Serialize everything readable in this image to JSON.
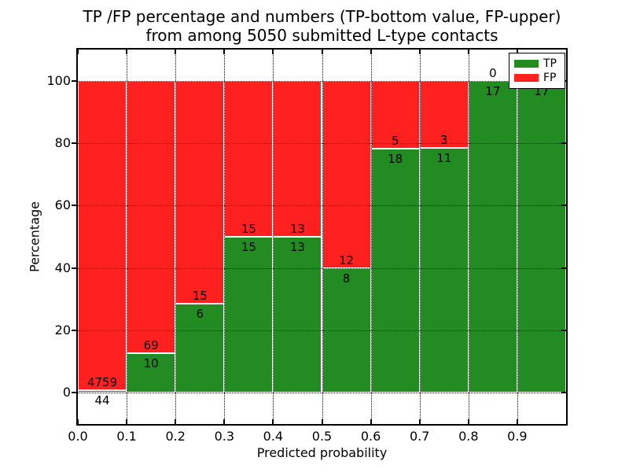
{
  "chart_data": {
    "type": "bar",
    "subtype": "stacked-100-percent",
    "title_lines": [
      "TP /FP percentage and numbers (TP-bottom value, FP-upper)",
      "from among 5050 submitted L-type contacts"
    ],
    "xlabel": "Predicted probability",
    "ylabel": "Percentage",
    "xlim": [
      0.0,
      1.0
    ],
    "ylim": [
      -10,
      110
    ],
    "x_tick_labels": [
      "0.0",
      "0.1",
      "0.2",
      "0.3",
      "0.4",
      "0.5",
      "0.6",
      "0.7",
      "0.8",
      "0.9"
    ],
    "y_tick_values": [
      0,
      20,
      40,
      60,
      80,
      100
    ],
    "grid_style": "dotted",
    "legend_position": "upper-right",
    "total_submitted_contacts": 5050,
    "colors": {
      "tp": "#228b22",
      "fp": "#ff2020"
    },
    "legend": [
      {
        "label": "TP",
        "color": "#228b22"
      },
      {
        "label": "FP",
        "color": "#ff2020"
      }
    ],
    "bins": [
      {
        "x_start": 0.0,
        "x_end": 0.1,
        "tp": 44,
        "fp": 4759
      },
      {
        "x_start": 0.1,
        "x_end": 0.2,
        "tp": 10,
        "fp": 69
      },
      {
        "x_start": 0.2,
        "x_end": 0.3,
        "tp": 6,
        "fp": 15
      },
      {
        "x_start": 0.3,
        "x_end": 0.4,
        "tp": 15,
        "fp": 15
      },
      {
        "x_start": 0.4,
        "x_end": 0.5,
        "tp": 13,
        "fp": 13
      },
      {
        "x_start": 0.5,
        "x_end": 0.6,
        "tp": 8,
        "fp": 12
      },
      {
        "x_start": 0.6,
        "x_end": 0.7,
        "tp": 18,
        "fp": 5
      },
      {
        "x_start": 0.7,
        "x_end": 0.8,
        "tp": 11,
        "fp": 3
      },
      {
        "x_start": 0.8,
        "x_end": 0.9,
        "tp": 17,
        "fp": 0
      },
      {
        "x_start": 0.9,
        "x_end": 1.0,
        "tp": 17,
        "fp": 0,
        "fp_label_visible": false
      }
    ]
  }
}
